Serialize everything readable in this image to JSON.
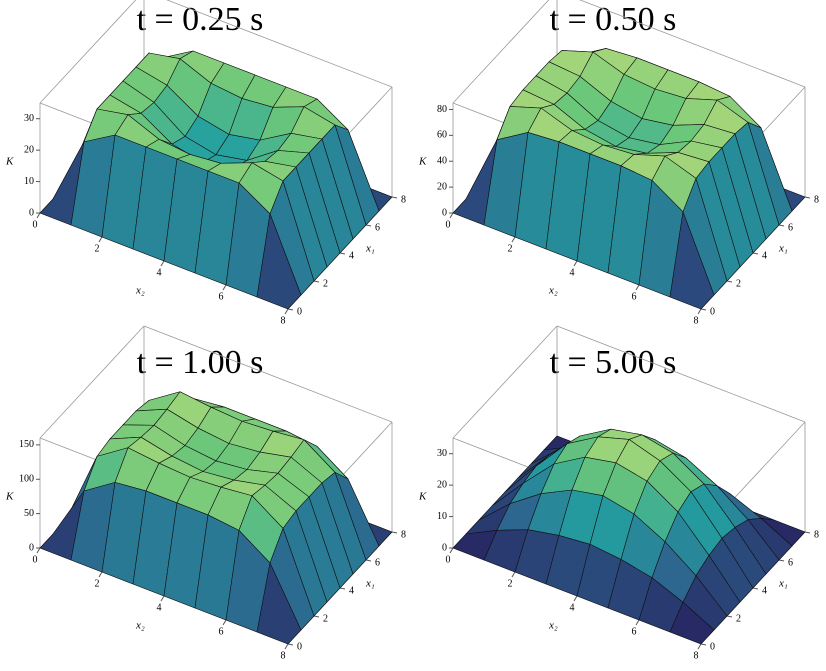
{
  "chart_data": [
    {
      "type": "surface",
      "title": "t = 0.25 s",
      "zlabel": "K",
      "x1label": "x₁",
      "x2label": "x₂",
      "x1": [
        0,
        1,
        2,
        3,
        4,
        5,
        6,
        7,
        8
      ],
      "x2": [
        0,
        1,
        2,
        3,
        4,
        5,
        6,
        7,
        8
      ],
      "x1lim": [
        0,
        8
      ],
      "x2lim": [
        0,
        8
      ],
      "x1ticks": [
        0,
        2,
        4,
        6,
        8
      ],
      "x2ticks": [
        0,
        2,
        4,
        6,
        8
      ],
      "zlim": [
        0,
        35
      ],
      "zticks": [
        0,
        10,
        20,
        30
      ],
      "values": [
        [
          0,
          0,
          0,
          0,
          0,
          0,
          0,
          0,
          0
        ],
        [
          0,
          22,
          28,
          28,
          28,
          28,
          28,
          22,
          0
        ],
        [
          0,
          28,
          30,
          26,
          25,
          26,
          30,
          28,
          0
        ],
        [
          0,
          28,
          26,
          20,
          18,
          20,
          26,
          28,
          0
        ],
        [
          0,
          28,
          25,
          18,
          16,
          18,
          25,
          28,
          0
        ],
        [
          0,
          28,
          26,
          20,
          18,
          20,
          26,
          28,
          0
        ],
        [
          0,
          28,
          30,
          26,
          25,
          26,
          30,
          28,
          0
        ],
        [
          0,
          22,
          28,
          28,
          28,
          28,
          28,
          22,
          0
        ],
        [
          0,
          0,
          0,
          0,
          0,
          0,
          0,
          0,
          0
        ]
      ]
    },
    {
      "type": "surface",
      "title": "t = 0.50 s",
      "zlabel": "K",
      "x1label": "x₁",
      "x2label": "x₂",
      "x1": [
        0,
        1,
        2,
        3,
        4,
        5,
        6,
        7,
        8
      ],
      "x2": [
        0,
        1,
        2,
        3,
        4,
        5,
        6,
        7,
        8
      ],
      "x1lim": [
        0,
        8
      ],
      "x2lim": [
        0,
        8
      ],
      "x1ticks": [
        0,
        2,
        4,
        6,
        8
      ],
      "x2ticks": [
        0,
        2,
        4,
        6,
        8
      ],
      "zlim": [
        0,
        85
      ],
      "zticks": [
        0,
        20,
        40,
        60,
        80
      ],
      "values": [
        [
          0,
          0,
          0,
          0,
          0,
          0,
          0,
          0,
          0
        ],
        [
          0,
          55,
          70,
          72,
          72,
          72,
          70,
          55,
          0
        ],
        [
          0,
          70,
          78,
          70,
          68,
          70,
          78,
          70,
          0
        ],
        [
          0,
          72,
          70,
          60,
          56,
          60,
          70,
          72,
          0
        ],
        [
          0,
          72,
          68,
          56,
          52,
          56,
          68,
          72,
          0
        ],
        [
          0,
          72,
          70,
          60,
          56,
          60,
          70,
          72,
          0
        ],
        [
          0,
          70,
          78,
          70,
          68,
          70,
          78,
          70,
          0
        ],
        [
          0,
          55,
          70,
          72,
          72,
          72,
          70,
          55,
          0
        ],
        [
          0,
          0,
          0,
          0,
          0,
          0,
          0,
          0,
          0
        ]
      ]
    },
    {
      "type": "surface",
      "title": "t = 1.00 s",
      "zlabel": "K",
      "x1label": "x₁",
      "x2label": "x₂",
      "x1": [
        0,
        1,
        2,
        3,
        4,
        5,
        6,
        7,
        8
      ],
      "x2": [
        0,
        1,
        2,
        3,
        4,
        5,
        6,
        7,
        8
      ],
      "x1lim": [
        0,
        8
      ],
      "x2lim": [
        0,
        8
      ],
      "x1ticks": [
        0,
        2,
        4,
        6,
        8
      ],
      "x2ticks": [
        0,
        2,
        4,
        6,
        8
      ],
      "zlim": [
        0,
        160
      ],
      "zticks": [
        0,
        50,
        100,
        150
      ],
      "values": [
        [
          0,
          0,
          0,
          0,
          0,
          0,
          0,
          0,
          0
        ],
        [
          0,
          80,
          110,
          115,
          115,
          115,
          110,
          80,
          0
        ],
        [
          0,
          110,
          140,
          135,
          132,
          135,
          140,
          110,
          0
        ],
        [
          0,
          115,
          135,
          125,
          120,
          125,
          135,
          115,
          0
        ],
        [
          0,
          115,
          132,
          120,
          115,
          120,
          132,
          115,
          0
        ],
        [
          0,
          115,
          135,
          125,
          120,
          125,
          135,
          115,
          0
        ],
        [
          0,
          110,
          140,
          135,
          132,
          135,
          140,
          110,
          0
        ],
        [
          0,
          80,
          110,
          115,
          115,
          115,
          110,
          80,
          0
        ],
        [
          0,
          0,
          0,
          0,
          0,
          0,
          0,
          0,
          0
        ]
      ]
    },
    {
      "type": "surface",
      "title": "t = 5.00 s",
      "zlabel": "K",
      "x1label": "x₁",
      "x2label": "x₂",
      "x1": [
        0,
        1,
        2,
        3,
        4,
        5,
        6,
        7,
        8
      ],
      "x2": [
        0,
        1,
        2,
        3,
        4,
        5,
        6,
        7,
        8
      ],
      "x1lim": [
        0,
        8
      ],
      "x2lim": [
        0,
        8
      ],
      "x1ticks": [
        0,
        2,
        4,
        6,
        8
      ],
      "x2ticks": [
        0,
        2,
        4,
        6,
        8
      ],
      "zlim": [
        0,
        35
      ],
      "zticks": [
        0,
        10,
        20,
        30
      ],
      "values": [
        [
          0,
          0,
          0,
          0,
          0,
          0,
          0,
          0,
          0
        ],
        [
          0,
          5,
          9,
          11,
          12,
          11,
          9,
          5,
          0
        ],
        [
          0,
          9,
          16,
          21,
          23,
          21,
          16,
          9,
          0
        ],
        [
          0,
          11,
          21,
          27,
          29,
          27,
          21,
          11,
          0
        ],
        [
          0,
          12,
          23,
          29,
          32,
          29,
          23,
          12,
          0
        ],
        [
          0,
          11,
          21,
          27,
          29,
          27,
          21,
          11,
          0
        ],
        [
          0,
          9,
          16,
          21,
          23,
          21,
          16,
          9,
          0
        ],
        [
          0,
          5,
          9,
          11,
          12,
          11,
          9,
          5,
          0
        ],
        [
          0,
          0,
          0,
          0,
          0,
          0,
          0,
          0,
          0
        ]
      ]
    }
  ]
}
